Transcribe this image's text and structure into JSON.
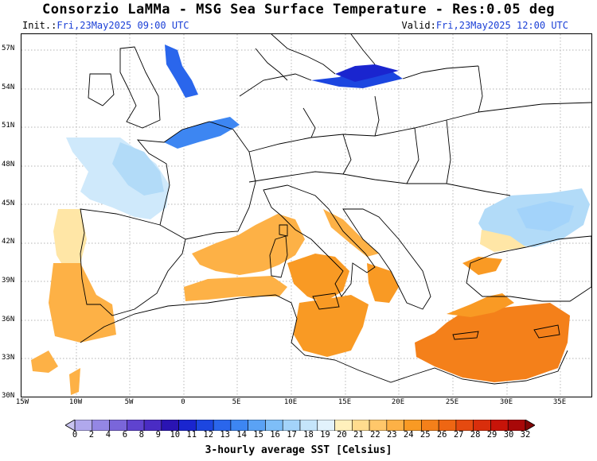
{
  "header": {
    "title": "Consorzio LaMMa -  MSG Sea Surface Temperature - Res:0.05 deg",
    "init_label": "Init.:",
    "init_value": "Fri,23May2025 09:00 UTC",
    "valid_label": "Valid:",
    "valid_value": "Fri,23May2025 12:00 UTC"
  },
  "axes": {
    "lat_labels": [
      "57N",
      "54N",
      "51N",
      "48N",
      "45N",
      "42N",
      "39N",
      "36N",
      "33N",
      "30N"
    ],
    "lon_labels": [
      "15W",
      "10W",
      "5W",
      "0",
      "5E",
      "10E",
      "15E",
      "20E",
      "25E",
      "30E",
      "35E"
    ]
  },
  "colorbar": {
    "labels": [
      "0",
      "2",
      "4",
      "6",
      "8",
      "9",
      "10",
      "11",
      "12",
      "13",
      "14",
      "15",
      "16",
      "17",
      "18",
      "19",
      "20",
      "21",
      "22",
      "23",
      "24",
      "25",
      "26",
      "27",
      "28",
      "29",
      "30",
      "32"
    ],
    "colors": [
      "#c9c4f0",
      "#b0a8ec",
      "#9487e4",
      "#7a66da",
      "#5f43cf",
      "#4a2cc4",
      "#2a14b3",
      "#1a25cf",
      "#1c46e0",
      "#2a66ec",
      "#3d86f2",
      "#5aa2f5",
      "#7ebef8",
      "#a3d3fa",
      "#c5e5fb",
      "#e2f2fc",
      "#fff0bc",
      "#ffdc8e",
      "#ffc76a",
      "#fdb146",
      "#f99a24",
      "#f4801a",
      "#ee6613",
      "#e54a10",
      "#d92e0c",
      "#c71409",
      "#a80808",
      "#800606"
    ],
    "title": "3-hourly average SST [Celsius]"
  },
  "colors": {
    "land_border": "#000000",
    "grid": "#9a9a9a",
    "date_text": "#1a3fd6"
  }
}
